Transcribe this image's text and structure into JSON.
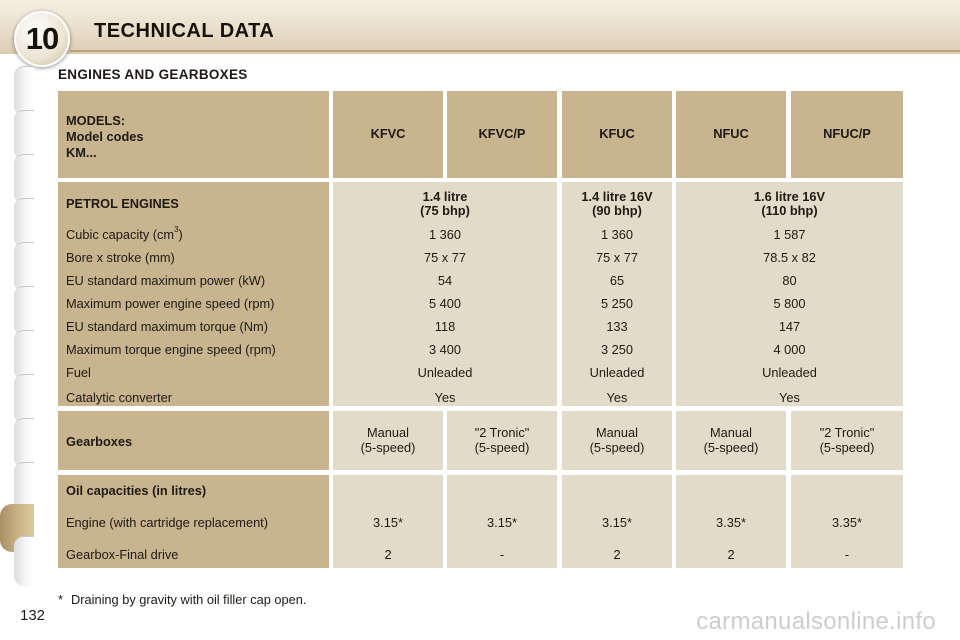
{
  "header": {
    "chapter_number": "10",
    "title": "TECHNICAL DATA"
  },
  "section_title": "ENGINES AND GEARBOXES",
  "models_block": {
    "label_lines": [
      "MODELS:",
      "Model codes",
      "KM..."
    ],
    "codes": [
      "KFVC",
      "KFVC/P",
      "KFUC",
      "NFUC",
      "NFUC/P"
    ]
  },
  "petrol": {
    "heading": "PETROL ENGINES",
    "engines": [
      {
        "line1": "1.4 litre",
        "line2": "(75 bhp)"
      },
      {
        "line1": "1.4 litre 16V",
        "line2": "(90 bhp)"
      },
      {
        "line1": "1.6 litre 16V",
        "line2": "(110 bhp)"
      }
    ],
    "rows": [
      {
        "label": "Cubic capacity (cm",
        "label_sup": "3",
        "label_tail": ")",
        "values": [
          "1 360",
          "1 360",
          "1 587"
        ]
      },
      {
        "label": "Bore x stroke (mm)",
        "values": [
          "75 x 77",
          "75 x 77",
          "78.5 x 82"
        ]
      },
      {
        "label": "EU standard maximum power (kW)",
        "values": [
          "54",
          "65",
          "80"
        ]
      },
      {
        "label": "Maximum power engine speed (rpm)",
        "values": [
          "5 400",
          "5 250",
          "5 800"
        ]
      },
      {
        "label": "EU standard maximum torque (Nm)",
        "values": [
          "118",
          "133",
          "147"
        ]
      },
      {
        "label": "Maximum torque engine speed (rpm)",
        "values": [
          "3 400",
          "3 250",
          "4 000"
        ]
      },
      {
        "label": "Fuel",
        "values": [
          "Unleaded",
          "Unleaded",
          "Unleaded"
        ]
      },
      {
        "label": "Catalytic converter",
        "values": [
          "Yes",
          "Yes",
          "Yes"
        ]
      }
    ]
  },
  "gearboxes": {
    "label": "Gearboxes",
    "values": [
      {
        "line1": "Manual",
        "line2": "(5-speed)"
      },
      {
        "line1": "\"2 Tronic\"",
        "line2": "(5-speed)"
      },
      {
        "line1": "Manual",
        "line2": "(5-speed)"
      },
      {
        "line1": "Manual",
        "line2": "(5-speed)"
      },
      {
        "line1": "\"2 Tronic\"",
        "line2": "(5-speed)"
      }
    ]
  },
  "oil": {
    "heading": "Oil capacities (in litres)",
    "rows": [
      {
        "label": "Engine (with cartridge replacement)",
        "values": [
          "3.15*",
          "3.15*",
          "3.15*",
          "3.35*",
          "3.35*"
        ]
      },
      {
        "label": "Gearbox-Final drive",
        "values": [
          "2",
          "-",
          "2",
          "2",
          "-"
        ]
      }
    ]
  },
  "footnote": {
    "star": "*",
    "text": "Draining by gravity with oil filler cap open."
  },
  "page_number": "132",
  "watermark": "carmanualsonline.info",
  "colors": {
    "header_cell": "#c8b48e",
    "body_cell": "#e3dbc9",
    "active_tab": "#cdb889"
  }
}
